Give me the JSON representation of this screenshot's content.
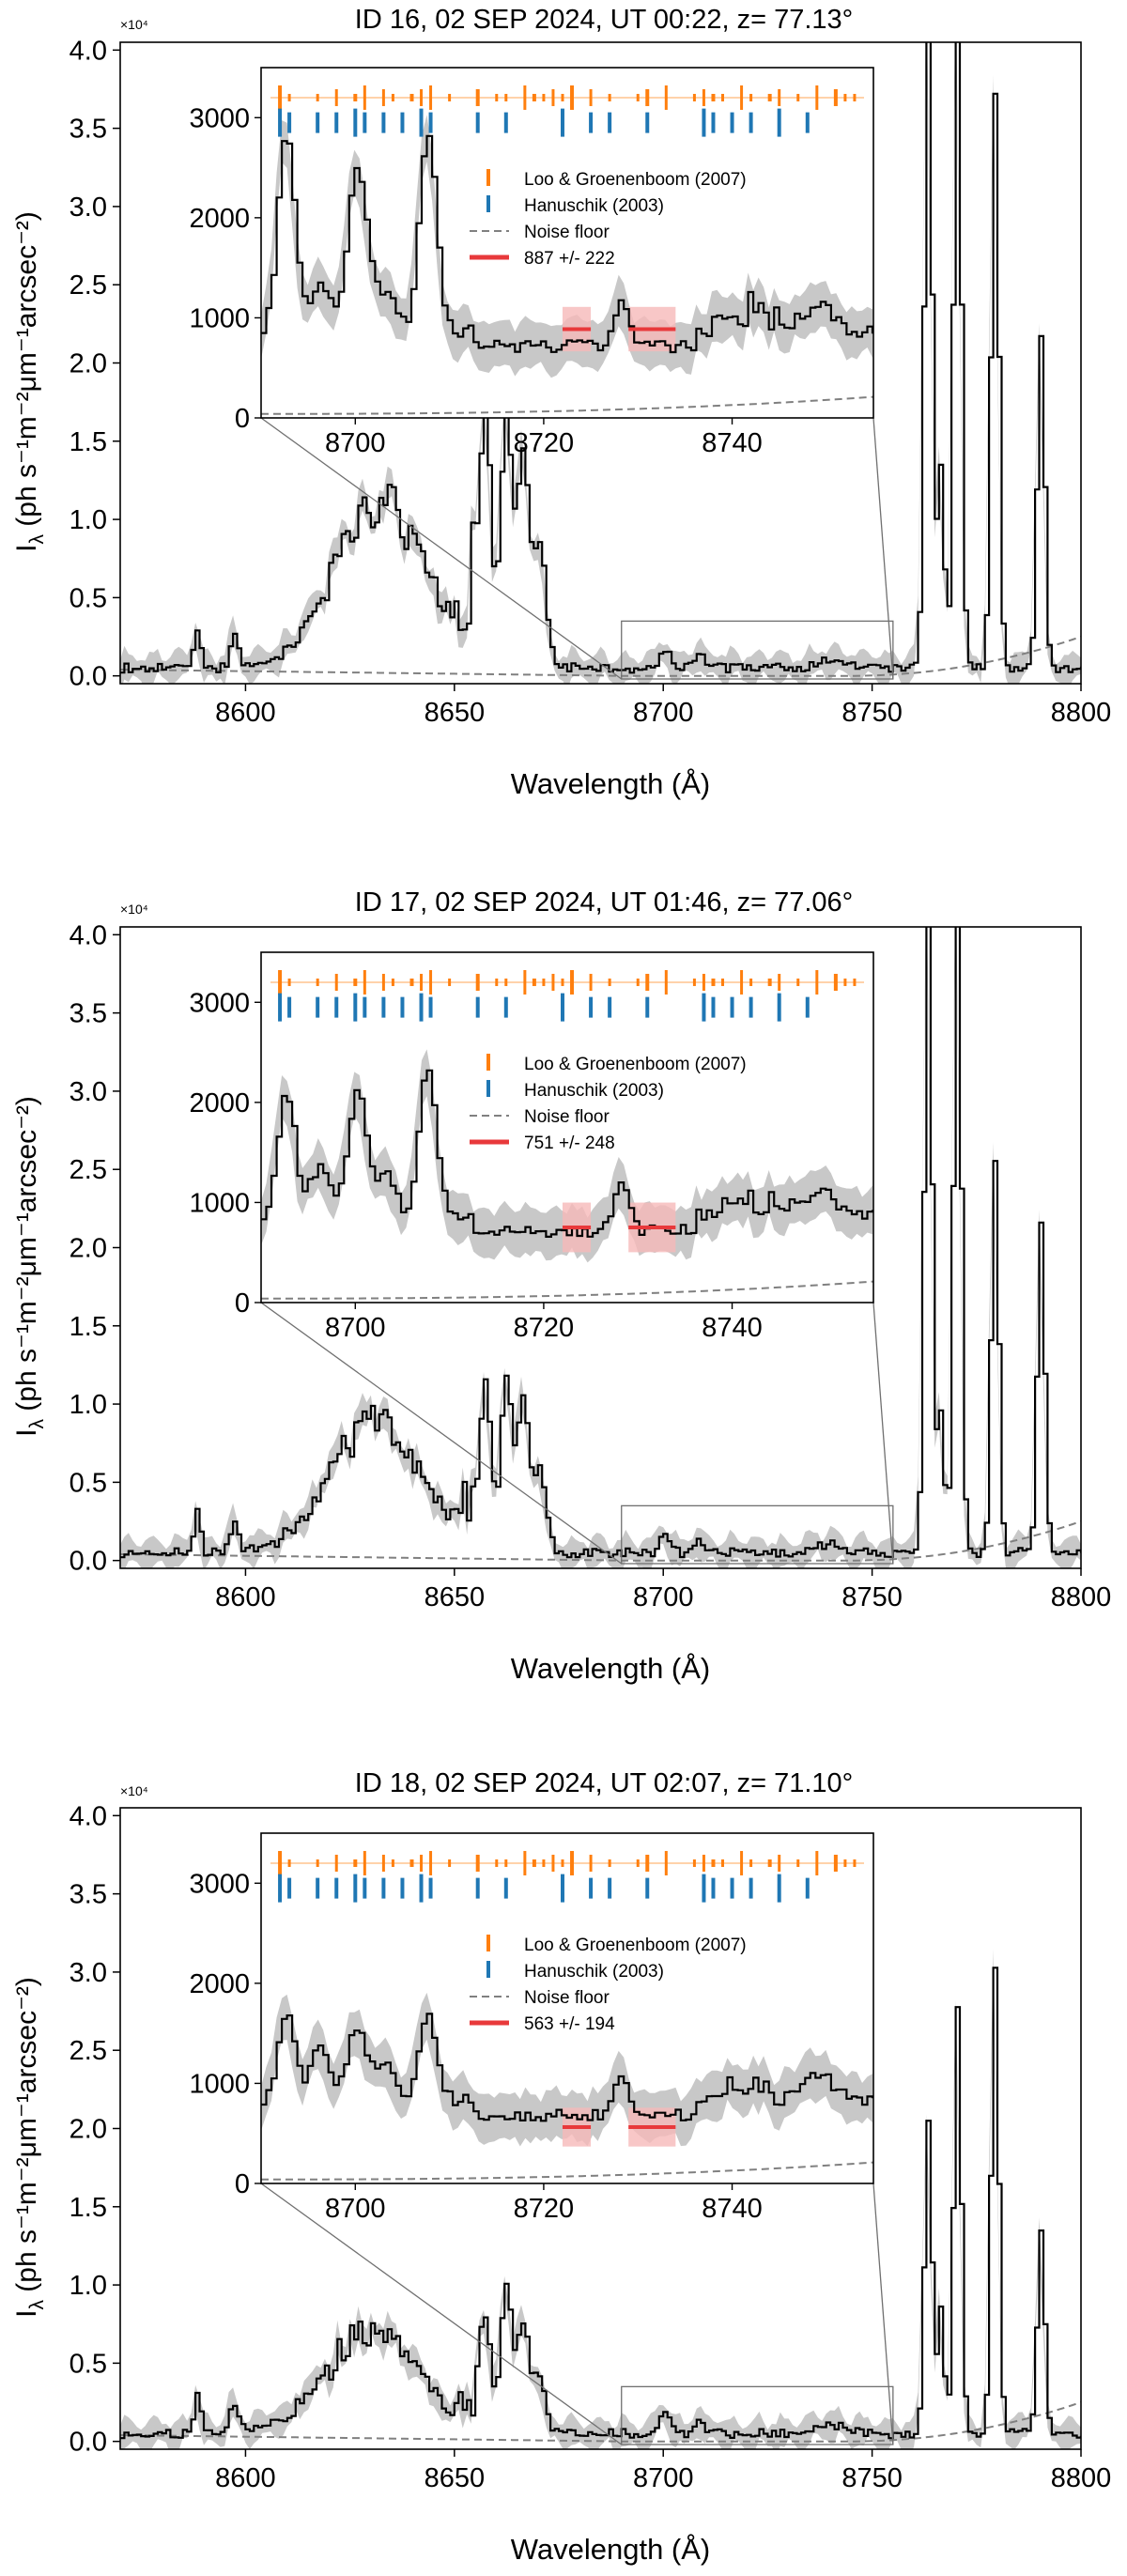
{
  "figure": {
    "xlabel": "Wavelength (Å)",
    "ylabel": "I",
    "ylabel_sub": "λ",
    "ylabel_units": " (ph s⁻¹m⁻²μm⁻¹arcsec⁻²)",
    "y_multiplier": "×10⁴"
  },
  "colors": {
    "spectrum": "#000000",
    "uncertainty": "#c8c8c8",
    "noise_floor": "#808080",
    "loo_lines": "#ff7f0e",
    "hanuschik_lines": "#1f77b4",
    "mean_marker": "#e8393b",
    "mean_band": "#f6b9b9"
  },
  "chart_data": [
    {
      "type": "line",
      "title": "ID 16, 02 SEP 2024, UT 00:22, z= 77.13°",
      "xlim": [
        8570,
        8800
      ],
      "ylim": [
        -0.05,
        4.05
      ],
      "xticks": [
        8600,
        8650,
        8700,
        8750,
        8800
      ],
      "yticks": [
        0.0,
        0.5,
        1.0,
        1.5,
        2.0,
        2.5,
        3.0,
        3.5,
        4.0
      ],
      "ytick_labels": [
        "0.0",
        "0.5",
        "1.0",
        "1.5",
        "2.0",
        "2.5",
        "3.0",
        "3.5",
        "4.0"
      ],
      "y_scale_note": "×10⁴",
      "main_shape": {
        "bump_height": 1.1,
        "bump_center": 8632,
        "cluster_peaks": [
          1.6,
          1.65,
          1.35
        ],
        "ring_levels": [
          4.3,
          4.3,
          3.7
        ],
        "late_levels": [
          1.3,
          2.1
        ]
      },
      "inset": {
        "xlim": [
          8690,
          8755
        ],
        "ylim": [
          0,
          3500
        ],
        "xticks": [
          8700,
          8720,
          8740
        ],
        "yticks": [
          0,
          1000,
          2000,
          3000
        ],
        "legend": [
          "Loo & Groenenboom (2007)",
          "Hanuschik (2003)",
          "Noise floor",
          "887 +/- 222"
        ],
        "mean_value": 887,
        "mean_error": 222,
        "peaks": [
          2800,
          2500,
          2750
        ],
        "tail_level": 1150
      }
    },
    {
      "type": "line",
      "title": "ID 17, 02 SEP 2024, UT 01:46, z= 77.06°",
      "xlim": [
        8570,
        8800
      ],
      "ylim": [
        -0.05,
        4.05
      ],
      "xticks": [
        8600,
        8650,
        8700,
        8750,
        8800
      ],
      "yticks": [
        0.0,
        0.5,
        1.0,
        1.5,
        2.0,
        2.5,
        3.0,
        3.5,
        4.0
      ],
      "ytick_labels": [
        "0.0",
        "0.5",
        "1.0",
        "1.5",
        "2.0",
        "2.5",
        "3.0",
        "3.5",
        "4.0"
      ],
      "y_scale_note": "×10⁴",
      "main_shape": {
        "bump_height": 0.88,
        "bump_center": 8631,
        "cluster_peaks": [
          1.05,
          1.1,
          0.95
        ],
        "ring_levels": [
          4.3,
          4.3,
          2.5
        ],
        "late_levels": [
          0.9,
          2.1
        ]
      },
      "inset": {
        "xlim": [
          8690,
          8755
        ],
        "ylim": [
          0,
          3500
        ],
        "xticks": [
          8700,
          8720,
          8740
        ],
        "yticks": [
          0,
          1000,
          2000,
          3000
        ],
        "legend": [
          "Loo & Groenenboom (2007)",
          "Hanuschik (2003)",
          "Noise floor",
          "751 +/- 248"
        ],
        "mean_value": 751,
        "mean_error": 248,
        "peaks": [
          2050,
          2050,
          2300
        ],
        "tail_level": 1150
      }
    },
    {
      "type": "line",
      "title": "ID 18, 02 SEP 2024, UT 02:07, z= 71.10°",
      "xlim": [
        8570,
        8800
      ],
      "ylim": [
        -0.05,
        4.05
      ],
      "xticks": [
        8600,
        8650,
        8700,
        8750,
        8800
      ],
      "yticks": [
        0.0,
        0.5,
        1.0,
        1.5,
        2.0,
        2.5,
        3.0,
        3.5,
        4.0
      ],
      "ytick_labels": [
        "0.0",
        "0.5",
        "1.0",
        "1.5",
        "2.0",
        "2.5",
        "3.0",
        "3.5",
        "4.0"
      ],
      "y_scale_note": "×10⁴",
      "main_shape": {
        "bump_height": 0.7,
        "bump_center": 8630,
        "cluster_peaks": [
          0.72,
          0.95,
          0.7
        ],
        "ring_levels": [
          2.0,
          2.7,
          3.0
        ],
        "late_levels": [
          0.8,
          1.3
        ]
      },
      "inset": {
        "xlim": [
          8690,
          8755
        ],
        "ylim": [
          0,
          3500
        ],
        "xticks": [
          8700,
          8720,
          8740
        ],
        "yticks": [
          0,
          1000,
          2000,
          3000
        ],
        "legend": [
          "Loo & Groenenboom (2007)",
          "Hanuschik (2003)",
          "Noise floor",
          "563 +/- 194"
        ],
        "mean_value": 563,
        "mean_error": 194,
        "peaks": [
          1600,
          1500,
          1600
        ],
        "tail_level": 1100
      }
    }
  ],
  "line_catalogs": {
    "loo_groenenboom_2007": [
      8692,
      8693,
      8696,
      8698,
      8700,
      8701,
      8703,
      8704,
      8706,
      8707,
      8708,
      8710,
      8713,
      8715,
      8716,
      8718,
      8719,
      8720,
      8721,
      8722,
      8723,
      8725,
      8727,
      8730,
      8731,
      8733,
      8736,
      8737,
      8738,
      8739,
      8741,
      8742,
      8744,
      8745,
      8747,
      8749,
      8751,
      8752,
      8753
    ],
    "hanuschik_2003": [
      8692,
      8693,
      8696,
      8698,
      8700,
      8701,
      8703,
      8705,
      8707,
      8708,
      8713,
      8716,
      8722,
      8725,
      8727,
      8731,
      8737,
      8738,
      8740,
      8742,
      8745,
      8748
    ]
  }
}
